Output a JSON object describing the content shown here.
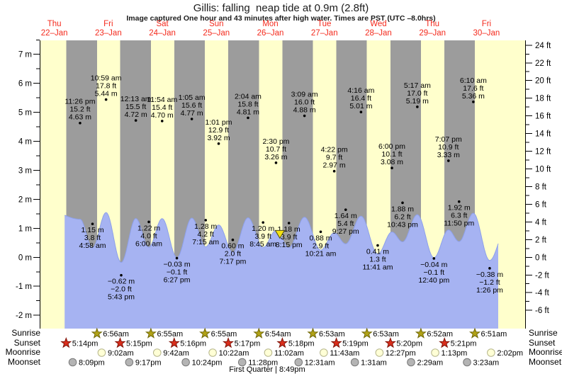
{
  "title": "Gillis: falling  neap tide at 0.9m (2.8ft)",
  "subtitle": "Image captured One hour and 43 minutes after high water. Times are PST (UTC –8.0hrs)",
  "footer": "First Quarter | 8:49pm",
  "rows": {
    "sunrise": "Sunrise",
    "sunset": "Sunset",
    "moonrise": "Moonrise",
    "moonset": "Moonset"
  },
  "colors": {
    "day_band": "#ffffcc",
    "night_band": "#9c9c9c",
    "tide_area": "#a6b3f2",
    "tide_edge": "#8da0ea",
    "day_label_red": "#f42a1d",
    "text": "#000000",
    "dot": "#000000",
    "sunrise_star": "#b1a216",
    "sunrise_star_edge": "#6f6708",
    "sunset_star": "#da2e1c",
    "sunset_star_edge": "#801409",
    "moonrise_fill": "#ffffd6",
    "moonrise_edge": "#b6b68c",
    "moonset_fill": "#b4b4b4",
    "moonset_edge": "#787878",
    "marker_fill": "#f4e214",
    "marker_edge": "#4a4a10"
  },
  "chart_data": {
    "type": "area",
    "title": "Gillis: falling  neap tide at 0.9m (2.8ft)",
    "x_start_label": "Thu 22-Jan 05:30 PST",
    "days": [
      {
        "name": "Thu",
        "date": "22–Jan"
      },
      {
        "name": "Fri",
        "date": "23–Jan"
      },
      {
        "name": "Sat",
        "date": "24–Jan"
      },
      {
        "name": "Sun",
        "date": "25–Jan"
      },
      {
        "name": "Mon",
        "date": "26–Jan"
      },
      {
        "name": "Tue",
        "date": "27–Jan"
      },
      {
        "name": "Wed",
        "date": "28–Jan"
      },
      {
        "name": "Thu",
        "date": "29–Jan"
      },
      {
        "name": "Fri",
        "date": "30–Jan"
      }
    ],
    "y_axis_left": {
      "unit": "m",
      "min": -2,
      "max": 7,
      "step": 1
    },
    "y_axis_right": {
      "unit": "ft",
      "min": -6,
      "max": 24,
      "step": 2
    },
    "tide_events": [
      {
        "day": 0,
        "time": "23:26",
        "type": "high",
        "m": 4.63,
        "ft": 15.2,
        "time_label": "11:26 pm"
      },
      {
        "day": 1,
        "time": "04:58",
        "type": "low",
        "m": 1.15,
        "ft": 3.8,
        "time_label": "4:58 am"
      },
      {
        "day": 1,
        "time": "10:59",
        "type": "high",
        "m": 5.44,
        "ft": 17.8,
        "time_label": "10:59 am"
      },
      {
        "day": 1,
        "time": "17:43",
        "type": "low",
        "m": -0.62,
        "ft": -2.0,
        "time_label": "5:43 pm"
      },
      {
        "day": 2,
        "time": "00:13",
        "type": "high",
        "m": 4.72,
        "ft": 15.5,
        "time_label": "12:13 am"
      },
      {
        "day": 2,
        "time": "06:00",
        "type": "low",
        "m": 1.22,
        "ft": 4.0,
        "time_label": "6:00 am"
      },
      {
        "day": 2,
        "time": "11:54",
        "type": "high",
        "m": 4.7,
        "ft": 15.4,
        "time_label": "11:54 am"
      },
      {
        "day": 2,
        "time": "18:27",
        "type": "low",
        "m": -0.03,
        "ft": -0.1,
        "time_label": "6:27 pm"
      },
      {
        "day": 3,
        "time": "01:05",
        "type": "high",
        "m": 4.77,
        "ft": 15.6,
        "time_label": "1:05 am"
      },
      {
        "day": 3,
        "time": "07:15",
        "type": "low",
        "m": 1.28,
        "ft": 4.2,
        "time_label": "7:15 am"
      },
      {
        "day": 3,
        "time": "13:01",
        "type": "high",
        "m": 3.92,
        "ft": 12.9,
        "time_label": "1:01 pm"
      },
      {
        "day": 3,
        "time": "19:17",
        "type": "low",
        "m": 0.6,
        "ft": 2.0,
        "time_label": "7:17 pm"
      },
      {
        "day": 4,
        "time": "02:04",
        "type": "high",
        "m": 4.81,
        "ft": 15.8,
        "time_label": "2:04 am"
      },
      {
        "day": 4,
        "time": "08:45",
        "type": "low",
        "m": 1.2,
        "ft": 3.9,
        "time_label": "8:45 am"
      },
      {
        "day": 4,
        "time": "14:30",
        "type": "high",
        "m": 3.26,
        "ft": 10.7,
        "time_label": "2:30 pm"
      },
      {
        "day": 4,
        "time": "20:15",
        "type": "low",
        "m": 1.18,
        "ft": 3.9,
        "time_label": "8:15 pm"
      },
      {
        "day": 5,
        "time": "03:09",
        "type": "high",
        "m": 4.88,
        "ft": 16.0,
        "time_label": "3:09 am"
      },
      {
        "day": 5,
        "time": "10:21",
        "type": "low",
        "m": 0.88,
        "ft": 2.9,
        "time_label": "10:21 am"
      },
      {
        "day": 5,
        "time": "16:22",
        "type": "high",
        "m": 2.97,
        "ft": 9.7,
        "time_label": "4:22 pm"
      },
      {
        "day": 5,
        "time": "21:27",
        "type": "low",
        "m": 1.64,
        "ft": 5.4,
        "time_label": "9:27 pm"
      },
      {
        "day": 6,
        "time": "04:16",
        "type": "high",
        "m": 5.01,
        "ft": 16.4,
        "time_label": "4:16 am"
      },
      {
        "day": 6,
        "time": "11:41",
        "type": "low",
        "m": 0.41,
        "ft": 1.3,
        "time_label": "11:41 am"
      },
      {
        "day": 6,
        "time": "18:00",
        "type": "high",
        "m": 3.08,
        "ft": 10.1,
        "time_label": "6:00 pm"
      },
      {
        "day": 6,
        "time": "22:43",
        "type": "low",
        "m": 1.88,
        "ft": 6.2,
        "time_label": "10:43 pm"
      },
      {
        "day": 7,
        "time": "05:17",
        "type": "high",
        "m": 5.19,
        "ft": 17.0,
        "time_label": "5:17 am"
      },
      {
        "day": 7,
        "time": "12:40",
        "type": "low",
        "m": -0.04,
        "ft": -0.1,
        "time_label": "12:40 pm"
      },
      {
        "day": 7,
        "time": "19:07",
        "type": "high",
        "m": 3.33,
        "ft": 10.9,
        "time_label": "7:07 pm"
      },
      {
        "day": 7,
        "time": "23:50",
        "type": "low",
        "m": 1.92,
        "ft": 6.3,
        "time_label": "11:50 pm"
      },
      {
        "day": 8,
        "time": "06:10",
        "type": "high",
        "m": 5.36,
        "ft": 17.6,
        "time_label": "6:10 am"
      },
      {
        "day": 8,
        "time": "13:26",
        "type": "low",
        "m": -0.38,
        "ft": -1.2,
        "time_label": "1:26 pm"
      }
    ],
    "sun": {
      "sunrise": [
        {
          "day": 1,
          "time": "06:56",
          "label": "6:56am"
        },
        {
          "day": 2,
          "time": "06:55",
          "label": "6:55am"
        },
        {
          "day": 3,
          "time": "06:55",
          "label": "6:55am"
        },
        {
          "day": 4,
          "time": "06:54",
          "label": "6:54am"
        },
        {
          "day": 5,
          "time": "06:53",
          "label": "6:53am"
        },
        {
          "day": 6,
          "time": "06:53",
          "label": "6:53am"
        },
        {
          "day": 7,
          "time": "06:52",
          "label": "6:52am"
        },
        {
          "day": 8,
          "time": "06:51",
          "label": "6:51am"
        }
      ],
      "sunset": [
        {
          "day": 0,
          "time": "17:14",
          "label": "5:14pm"
        },
        {
          "day": 1,
          "time": "17:15",
          "label": "5:15pm"
        },
        {
          "day": 2,
          "time": "17:16",
          "label": "5:16pm"
        },
        {
          "day": 3,
          "time": "17:17",
          "label": "5:17pm"
        },
        {
          "day": 4,
          "time": "17:18",
          "label": "5:18pm"
        },
        {
          "day": 5,
          "time": "17:19",
          "label": "5:19pm"
        },
        {
          "day": 6,
          "time": "17:20",
          "label": "5:20pm"
        },
        {
          "day": 7,
          "time": "17:21",
          "label": "5:21pm"
        }
      ]
    },
    "moon": {
      "moonrise": [
        {
          "day": 1,
          "time": "09:02",
          "label": "9:02am"
        },
        {
          "day": 2,
          "time": "09:42",
          "label": "9:42am"
        },
        {
          "day": 3,
          "time": "10:22",
          "label": "10:22am"
        },
        {
          "day": 4,
          "time": "11:02",
          "label": "11:02am"
        },
        {
          "day": 5,
          "time": "11:43",
          "label": "11:43am"
        },
        {
          "day": 6,
          "time": "12:27",
          "label": "12:27pm"
        },
        {
          "day": 7,
          "time": "13:13",
          "label": "1:13pm"
        },
        {
          "day": 8,
          "time": "14:02",
          "label": "2:02pm"
        }
      ],
      "moonset": [
        {
          "day": 0,
          "time": "20:09",
          "label": "8:09pm"
        },
        {
          "day": 1,
          "time": "21:17",
          "label": "9:17pm"
        },
        {
          "day": 2,
          "time": "22:24",
          "label": "10:24pm"
        },
        {
          "day": 3,
          "time": "23:28",
          "label": "11:28pm"
        },
        {
          "day": 5,
          "time": "00:31",
          "label": "12:31am"
        },
        {
          "day": 6,
          "time": "01:31",
          "label": "1:31am"
        },
        {
          "day": 7,
          "time": "02:29",
          "label": "2:29am"
        },
        {
          "day": 8,
          "time": "03:23",
          "label": "3:23am"
        }
      ]
    },
    "moon_phase": "First Quarter | 8:49pm",
    "current_time_marker": {
      "day": 4,
      "time": "16:13"
    }
  }
}
